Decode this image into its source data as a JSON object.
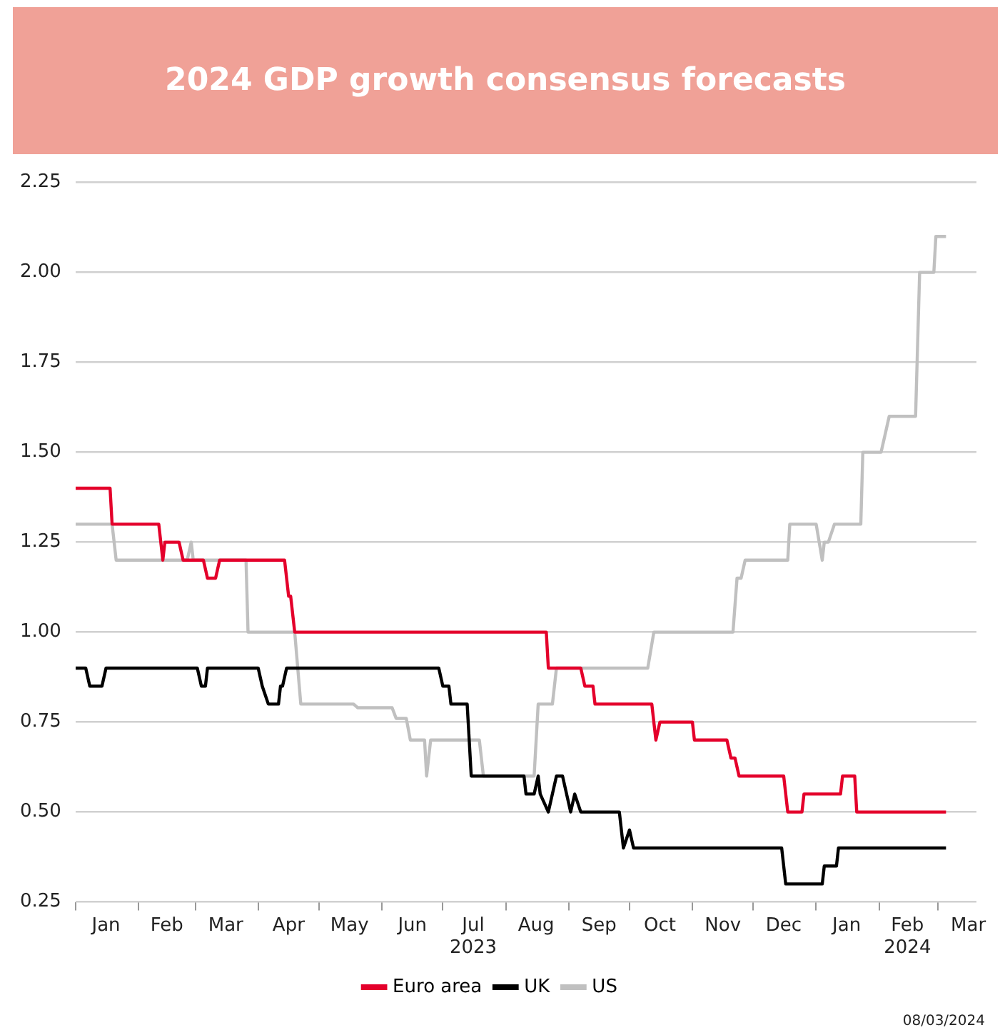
{
  "chart_data": {
    "type": "line",
    "title": "2024 GDP growth consensus forecasts",
    "xlim": [
      "2023-01-01",
      "2024-03-20"
    ],
    "xticks": [
      {
        "value": "2023-01-01",
        "label": null
      },
      {
        "value": "2023-01-16",
        "label": "Jan"
      },
      {
        "value": "2023-02-01",
        "label": null
      },
      {
        "value": "2023-02-15",
        "label": "Feb"
      },
      {
        "value": "2023-03-01",
        "label": null
      },
      {
        "value": "2023-03-16",
        "label": "Mar"
      },
      {
        "value": "2023-04-01",
        "label": null
      },
      {
        "value": "2023-04-16",
        "label": "Apr"
      },
      {
        "value": "2023-05-01",
        "label": null
      },
      {
        "value": "2023-05-16",
        "label": "May"
      },
      {
        "value": "2023-06-01",
        "label": null
      },
      {
        "value": "2023-06-16",
        "label": "Jun"
      },
      {
        "value": "2023-07-01",
        "label": null
      },
      {
        "value": "2023-07-16",
        "label": "Jul\n2023"
      },
      {
        "value": "2023-08-01",
        "label": null
      },
      {
        "value": "2023-08-16",
        "label": "Aug"
      },
      {
        "value": "2023-09-01",
        "label": null
      },
      {
        "value": "2023-09-16",
        "label": "Sep"
      },
      {
        "value": "2023-10-01",
        "label": null
      },
      {
        "value": "2023-10-16",
        "label": "Oct"
      },
      {
        "value": "2023-11-01",
        "label": null
      },
      {
        "value": "2023-11-16",
        "label": "Nov"
      },
      {
        "value": "2023-12-01",
        "label": null
      },
      {
        "value": "2023-12-16",
        "label": "Dec"
      },
      {
        "value": "2024-01-01",
        "label": null
      },
      {
        "value": "2024-01-16",
        "label": "Jan"
      },
      {
        "value": "2024-02-01",
        "label": null
      },
      {
        "value": "2024-02-15",
        "label": "Feb\n2024"
      },
      {
        "value": "2024-03-01",
        "label": null
      },
      {
        "value": "2024-03-16",
        "label": "Mar"
      }
    ],
    "ylim": [
      0.25,
      2.25
    ],
    "yticks": [
      {
        "value": 0.25,
        "label": "0.25"
      },
      {
        "value": 0.5,
        "label": "0.50"
      },
      {
        "value": 0.75,
        "label": "0.75"
      },
      {
        "value": 1,
        "label": "1.00"
      },
      {
        "value": 1.25,
        "label": "1.25"
      },
      {
        "value": 1.5,
        "label": "1.50"
      },
      {
        "value": 1.75,
        "label": "1.75"
      },
      {
        "value": 2,
        "label": "2.00"
      },
      {
        "value": 2.25,
        "label": "2.25"
      }
    ],
    "grid": "y",
    "legend": "bottom",
    "marker": "none",
    "annotations": [
      "08/03/2024"
    ],
    "series": [
      {
        "name": "Euro area",
        "color": "#e4002b",
        "x": [
          "2023-01-01",
          "2023-01-18",
          "2023-01-19",
          "2023-02-11",
          "2023-02-13",
          "2023-02-14",
          "2023-02-21",
          "2023-02-23",
          "2023-03-05",
          "2023-03-07",
          "2023-03-11",
          "2023-03-13",
          "2023-04-14",
          "2023-04-16",
          "2023-04-17",
          "2023-04-19",
          "2023-08-21",
          "2023-08-22",
          "2023-09-07",
          "2023-09-09",
          "2023-09-13",
          "2023-09-14",
          "2023-10-12",
          "2023-10-14",
          "2023-10-16",
          "2023-11-01",
          "2023-11-02",
          "2023-11-18",
          "2023-11-20",
          "2023-11-22",
          "2023-11-24",
          "2023-12-16",
          "2023-12-18",
          "2023-12-25",
          "2023-12-26",
          "2024-01-13",
          "2024-01-14",
          "2024-01-20",
          "2024-01-21",
          "2024-03-05"
        ],
        "values": [
          1.4,
          1.4,
          1.3,
          1.3,
          1.2,
          1.25,
          1.25,
          1.2,
          1.2,
          1.15,
          1.15,
          1.2,
          1.2,
          1.1,
          1.1,
          1.0,
          1.0,
          0.9,
          0.9,
          0.85,
          0.85,
          0.8,
          0.8,
          0.7,
          0.75,
          0.75,
          0.7,
          0.7,
          0.65,
          0.65,
          0.6,
          0.6,
          0.5,
          0.5,
          0.55,
          0.55,
          0.6,
          0.6,
          0.5,
          0.5
        ]
      },
      {
        "name": "UK",
        "color": "#000000",
        "x": [
          "2023-01-01",
          "2023-01-06",
          "2023-01-08",
          "2023-01-14",
          "2023-01-16",
          "2023-03-02",
          "2023-03-04",
          "2023-03-06",
          "2023-03-07",
          "2023-04-01",
          "2023-04-03",
          "2023-04-06",
          "2023-04-11",
          "2023-04-12",
          "2023-04-13",
          "2023-04-15",
          "2023-06-29",
          "2023-07-01",
          "2023-07-04",
          "2023-07-05",
          "2023-07-13",
          "2023-07-15",
          "2023-08-10",
          "2023-08-11",
          "2023-08-15",
          "2023-08-17",
          "2023-08-18",
          "2023-08-22",
          "2023-08-26",
          "2023-08-29",
          "2023-09-02",
          "2023-09-04",
          "2023-09-07",
          "2023-09-26",
          "2023-09-28",
          "2023-10-01",
          "2023-10-03",
          "2023-12-15",
          "2023-12-17",
          "2024-01-04",
          "2024-01-05",
          "2024-01-11",
          "2024-01-12",
          "2024-03-05"
        ],
        "values": [
          0.9,
          0.9,
          0.85,
          0.85,
          0.9,
          0.9,
          0.85,
          0.85,
          0.9,
          0.9,
          0.85,
          0.8,
          0.8,
          0.85,
          0.85,
          0.9,
          0.9,
          0.85,
          0.85,
          0.8,
          0.8,
          0.6,
          0.6,
          0.55,
          0.55,
          0.6,
          0.55,
          0.5,
          0.6,
          0.6,
          0.5,
          0.55,
          0.5,
          0.5,
          0.4,
          0.45,
          0.4,
          0.4,
          0.3,
          0.3,
          0.35,
          0.35,
          0.4,
          0.4
        ]
      },
      {
        "name": "US",
        "color": "#c0c0c0",
        "x": [
          "2023-01-01",
          "2023-01-19",
          "2023-01-21",
          "2023-02-25",
          "2023-02-27",
          "2023-02-28",
          "2023-03-26",
          "2023-03-27",
          "2023-04-19",
          "2023-04-22",
          "2023-05-18",
          "2023-05-20",
          "2023-06-06",
          "2023-06-08",
          "2023-06-13",
          "2023-06-15",
          "2023-06-22",
          "2023-06-23",
          "2023-06-25",
          "2023-07-19",
          "2023-07-21",
          "2023-08-15",
          "2023-08-17",
          "2023-08-24",
          "2023-08-26",
          "2023-10-10",
          "2023-10-13",
          "2023-11-21",
          "2023-11-23",
          "2023-11-25",
          "2023-11-27",
          "2023-12-18",
          "2023-12-19",
          "2024-01-01",
          "2024-01-04",
          "2024-01-05",
          "2024-01-07",
          "2024-01-10",
          "2024-01-23",
          "2024-01-24",
          "2024-02-02",
          "2024-02-04",
          "2024-02-06",
          "2024-02-19",
          "2024-02-21",
          "2024-02-28",
          "2024-02-29",
          "2024-03-05"
        ],
        "values": [
          1.3,
          1.3,
          1.2,
          1.2,
          1.25,
          1.2,
          1.2,
          1.0,
          1.0,
          0.8,
          0.8,
          0.79,
          0.79,
          0.76,
          0.76,
          0.7,
          0.7,
          0.6,
          0.7,
          0.7,
          0.6,
          0.6,
          0.8,
          0.8,
          0.9,
          0.9,
          1.0,
          1.0,
          1.15,
          1.15,
          1.2,
          1.2,
          1.3,
          1.3,
          1.2,
          1.25,
          1.25,
          1.3,
          1.3,
          1.5,
          1.5,
          1.55,
          1.6,
          1.6,
          2.0,
          2.0,
          2.1,
          2.1
        ]
      }
    ]
  }
}
